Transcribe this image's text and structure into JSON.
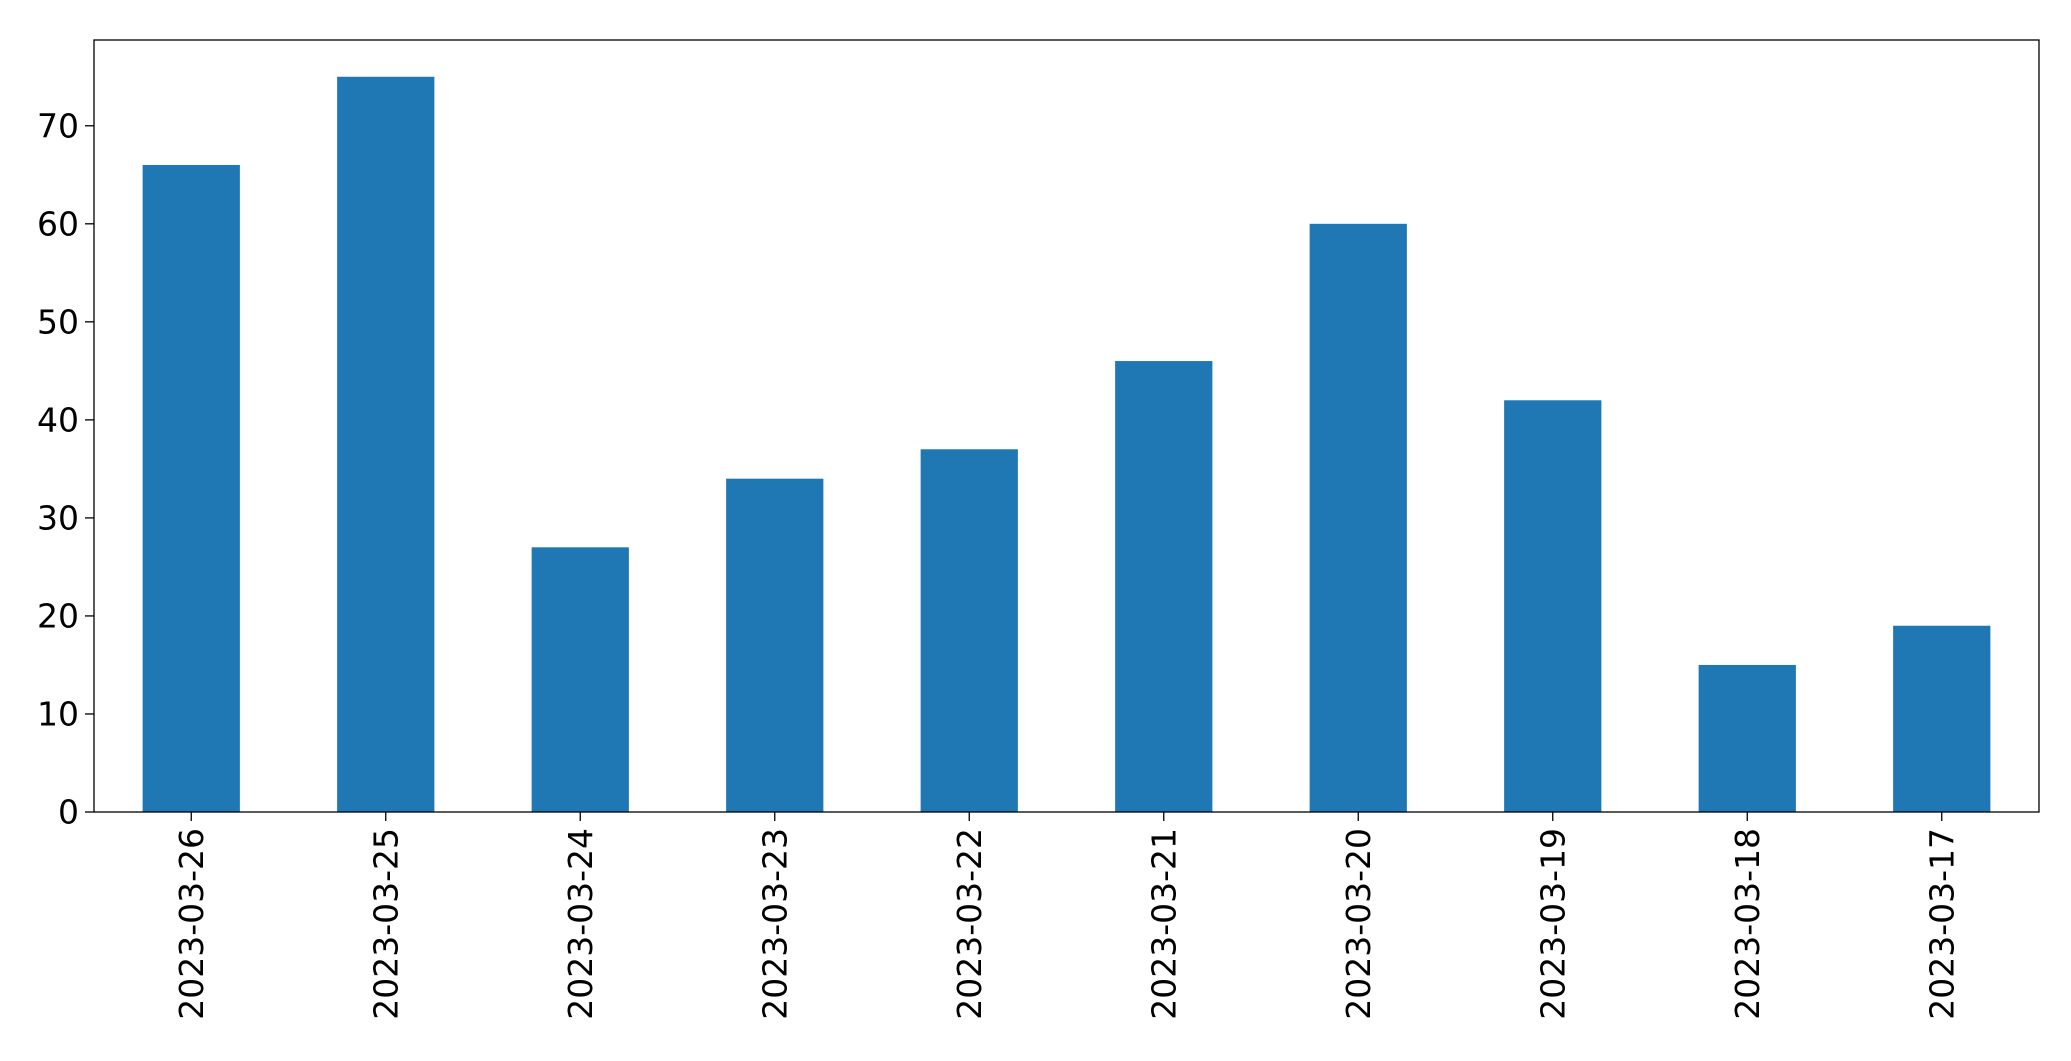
{
  "chart_data": {
    "type": "bar",
    "categories": [
      "2023-03-26",
      "2023-03-25",
      "2023-03-24",
      "2023-03-23",
      "2023-03-22",
      "2023-03-21",
      "2023-03-20",
      "2023-03-19",
      "2023-03-18",
      "2023-03-17"
    ],
    "values": [
      66,
      75,
      27,
      34,
      37,
      46,
      60,
      42,
      15,
      19
    ],
    "ylim": [
      0,
      78.75
    ],
    "yticks": [
      0,
      10,
      20,
      30,
      40,
      50,
      60,
      70
    ],
    "grid": false,
    "legend": "none",
    "colors": {
      "bar": "#1f77b4",
      "axis": "#000000"
    }
  }
}
